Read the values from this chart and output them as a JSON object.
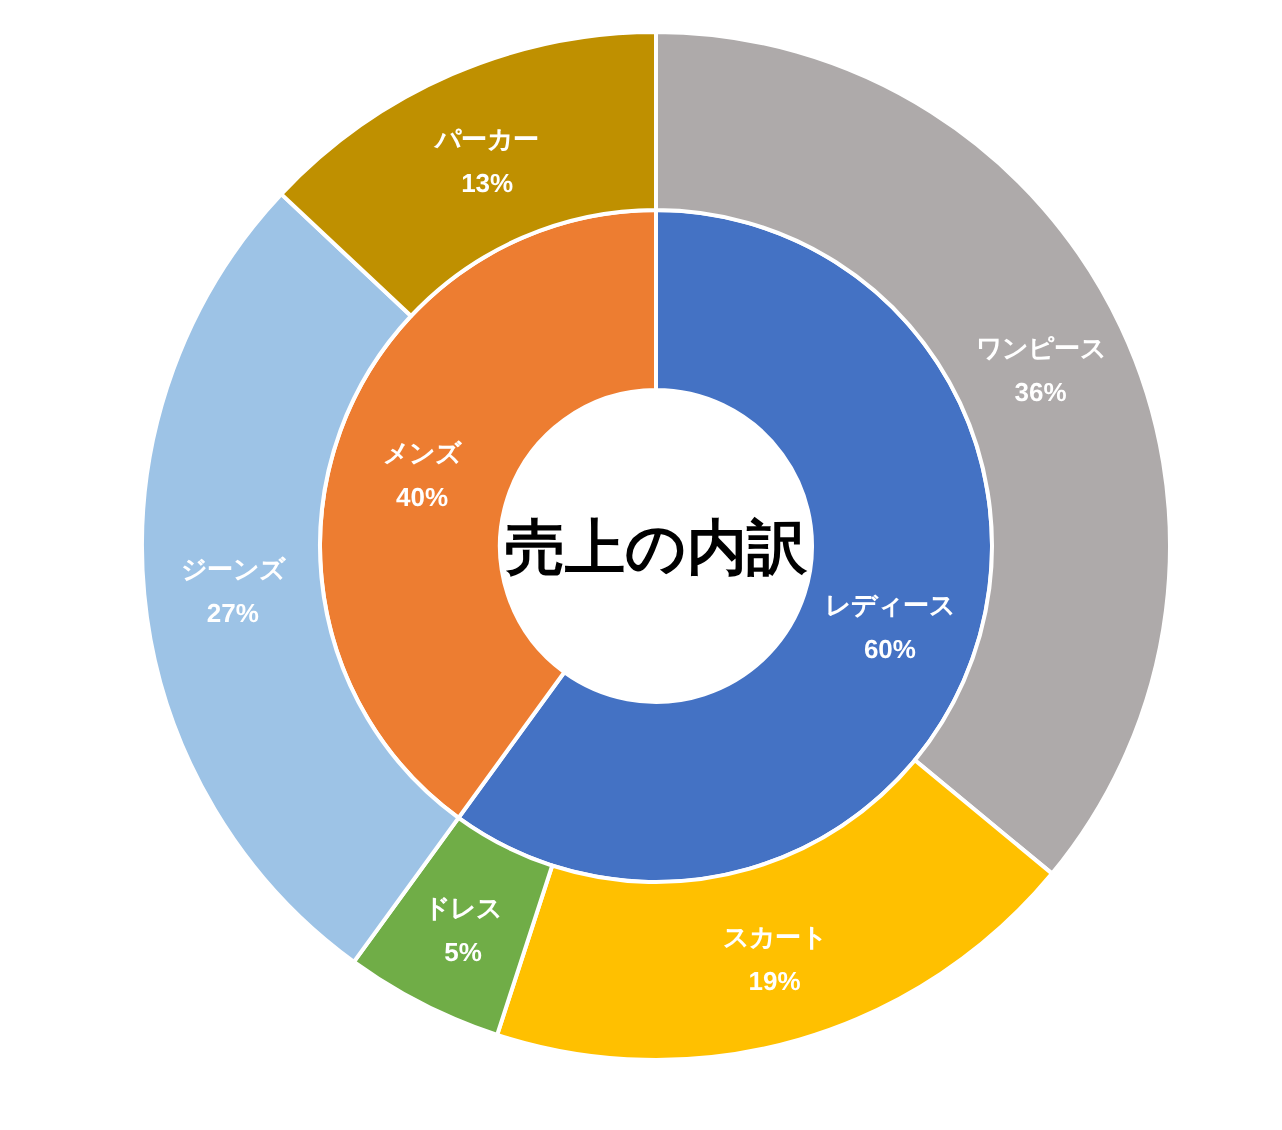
{
  "chart_data": [
    {
      "type": "donut",
      "title": "売上の内訳",
      "categories": [
        "レディース",
        "メンズ"
      ],
      "values": [
        60,
        40
      ],
      "colors": [
        "#4472c4",
        "#ed7d31"
      ],
      "value_labels": [
        "60%",
        "40%"
      ]
    },
    {
      "type": "donut",
      "categories": [
        "ワンピース",
        "スカート",
        "ドレス",
        "ジーンズ",
        "パーカー"
      ],
      "values": [
        36,
        19,
        5,
        27,
        13
      ],
      "colors": [
        "#aeaaaa",
        "#ffc000",
        "#70ad47",
        "#9dc3e6",
        "#bf9000"
      ],
      "value_labels": [
        "36%",
        "19%",
        "5%",
        "27%",
        "13%"
      ]
    }
  ]
}
